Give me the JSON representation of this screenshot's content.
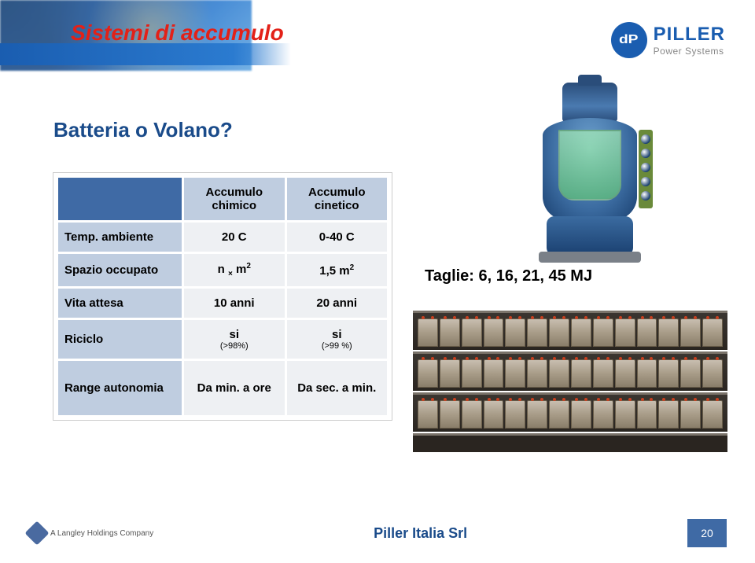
{
  "header": {
    "title": "Sistemi di accumulo",
    "brand": "PILLER",
    "brand_sub": "Power Systems",
    "brand_color": "#1a5db0",
    "title_color": "#e32118"
  },
  "question": "Batteria o Volano?",
  "question_color": "#1a4b8a",
  "taglie_label": "Taglie: 6, 16, 21, 45 MJ",
  "table": {
    "header_bg": "#bfcde0",
    "corner_bg": "#3f6aa5",
    "cell_bg": "#eef0f3",
    "columns": [
      "Accumulo chimico",
      "Accumulo cinetico"
    ],
    "rows": [
      {
        "label": "Temp. ambiente",
        "chimico": "20 C",
        "cinetico": "0-40 C"
      },
      {
        "label": "Spazio occupato",
        "chimico": "n × m²",
        "cinetico": "1,5 m²"
      },
      {
        "label": "Vita attesa",
        "chimico": "10 anni",
        "cinetico": "20 anni"
      },
      {
        "label": "Riciclo",
        "chimico": "si",
        "chimico_sub": "(>98%)",
        "cinetico": "si",
        "cinetico_sub": "(>99 %)"
      },
      {
        "label": "Range autonomia",
        "chimico": "Da min. a ore",
        "cinetico": "Da sec. a min."
      }
    ]
  },
  "footer": {
    "langley": "A Langley Holdings Company",
    "center": "Piller Italia Srl",
    "page": "20"
  },
  "rack": {
    "shelves": 3,
    "batteries_per_shelf": 14,
    "frame_color": "#2a2520",
    "battery_color": "#a89c88"
  },
  "flywheel": {
    "body_color": "#3b6ba0",
    "glass_color": "#8ed090"
  }
}
